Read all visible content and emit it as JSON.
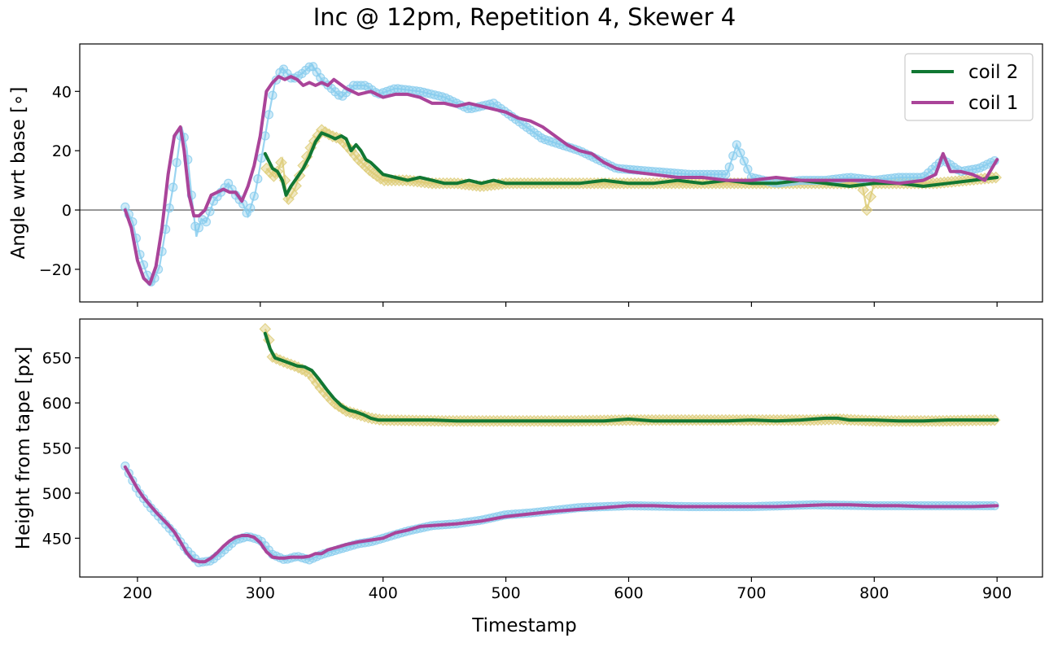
{
  "chart_data": {
    "title": "Inc @ 12pm, Repetition 4, Skewer 4",
    "xlabel": "Timestamp",
    "xlim": [
      153,
      937
    ],
    "xticks": [
      200,
      300,
      400,
      500,
      600,
      700,
      800,
      900
    ],
    "colors": {
      "coil2_raw": "#DDCC77",
      "coil2_line": "#117733",
      "coil1_raw": "#88CCEE",
      "coil1_line": "#AA4499",
      "zero_line": "#808080"
    },
    "panels": [
      {
        "type": "line",
        "ylabel": "Angle wrt base [∘]",
        "ylim": [
          -31,
          56
        ],
        "yticks": [
          -20,
          0,
          20,
          40
        ],
        "zero_line": true,
        "legend": {
          "placement": "top-right",
          "entries": [
            "coil 2",
            "coil 1"
          ]
        },
        "series": [
          {
            "name": "coil 2",
            "raw": {
              "x": [
                305,
                312,
                318,
                322,
                328,
                335,
                342,
                350,
                358,
                365,
                372,
                380,
                390,
                400,
                420,
                440,
                460,
                480,
                500,
                530,
                560,
                600,
                650,
                700,
                750,
                790,
                794,
                800,
                850,
                900
              ],
              "y": [
                14,
                11,
                17,
                3,
                7,
                15,
                22,
                27,
                25,
                24,
                21,
                17,
                13,
                10,
                10,
                9,
                9,
                8,
                9,
                9,
                9,
                9,
                9,
                9,
                9,
                9,
                0,
                9,
                9,
                11
              ]
            },
            "smooth": {
              "x": [
                304,
                310,
                314,
                318,
                321,
                325,
                330,
                335,
                340,
                345,
                350,
                356,
                361,
                366,
                370,
                374,
                378,
                382,
                386,
                390,
                395,
                400,
                410,
                420,
                430,
                440,
                450,
                460,
                470,
                480,
                490,
                500,
                520,
                540,
                560,
                580,
                600,
                620,
                640,
                660,
                680,
                700,
                720,
                740,
                760,
                780,
                800,
                820,
                840,
                860,
                880,
                900
              ],
              "y": [
                19,
                14,
                13,
                10,
                5,
                8,
                11,
                14,
                18,
                23,
                26,
                25,
                24,
                25,
                24,
                20,
                22,
                20,
                17,
                16,
                14,
                12,
                11,
                10,
                11,
                10,
                9,
                9,
                10,
                9,
                10,
                9,
                9,
                9,
                9,
                10,
                9,
                9,
                10,
                9,
                10,
                9,
                9,
                10,
                9,
                8,
                9,
                9,
                8,
                9,
                10,
                11
              ]
            }
          },
          {
            "name": "coil 1",
            "raw": {
              "x": [
                190,
                196,
                202,
                208,
                212,
                218,
                224,
                230,
                236,
                240,
                244,
                248,
                252,
                256,
                262,
                268,
                274,
                280,
                286,
                290,
                296,
                300,
                306,
                312,
                318,
                326,
                334,
                342,
                350,
                358,
                366,
                376,
                386,
                396,
                410,
                430,
                450,
                470,
                490,
                510,
                530,
                560,
                590,
                620,
                650,
                680,
                688,
                700,
                720,
                740,
                760,
                780,
                800,
                820,
                840,
                856,
                870,
                885,
                900
              ],
              "y": [
                1,
                -4,
                -15,
                -22,
                -25,
                -19,
                -4,
                10,
                28,
                21,
                5,
                -9,
                -3,
                -4,
                3,
                6,
                9,
                5,
                2,
                -2,
                6,
                15,
                30,
                43,
                48,
                44,
                46,
                49,
                44,
                41,
                38,
                42,
                42,
                39,
                41,
                40,
                38,
                34,
                36,
                30,
                24,
                20,
                14,
                13,
                12,
                12,
                22,
                11,
                9,
                10,
                10,
                11,
                10,
                11,
                11,
                17,
                13,
                14,
                17
              ]
            },
            "smooth": {
              "x": [
                190,
                195,
                200,
                205,
                210,
                215,
                220,
                225,
                230,
                235,
                238,
                242,
                246,
                250,
                255,
                260,
                265,
                270,
                275,
                280,
                285,
                290,
                295,
                300,
                305,
                310,
                315,
                320,
                325,
                330,
                335,
                340,
                345,
                350,
                355,
                360,
                370,
                380,
                390,
                400,
                410,
                420,
                430,
                440,
                450,
                460,
                470,
                480,
                490,
                500,
                510,
                520,
                530,
                540,
                550,
                560,
                570,
                580,
                590,
                600,
                620,
                640,
                660,
                680,
                690,
                700,
                720,
                740,
                760,
                780,
                800,
                820,
                840,
                850,
                856,
                862,
                870,
                880,
                890,
                900
              ],
              "y": [
                0,
                -6,
                -17,
                -23,
                -25,
                -19,
                -6,
                12,
                25,
                28,
                20,
                5,
                -2,
                -2,
                0,
                5,
                6,
                7,
                6,
                6,
                3,
                8,
                15,
                25,
                40,
                43,
                45,
                44,
                45,
                44,
                42,
                43,
                42,
                43,
                42,
                44,
                41,
                39,
                40,
                38,
                39,
                39,
                38,
                36,
                36,
                35,
                36,
                35,
                34,
                33,
                31,
                30,
                28,
                25,
                22,
                20,
                19,
                16,
                14,
                13,
                12,
                11,
                11,
                10,
                10,
                10,
                11,
                10,
                10,
                10,
                10,
                9,
                10,
                12,
                19,
                13,
                13,
                12,
                10,
                17
              ]
            }
          }
        ]
      },
      {
        "type": "line",
        "ylabel": "Height from tape [px]",
        "ylim": [
          407,
          693
        ],
        "yticks": [
          450,
          500,
          550,
          600,
          650
        ],
        "series": [
          {
            "name": "coil 2",
            "raw": {
              "x": [
                304,
                306,
                310,
                320,
                330,
                340,
                350,
                360,
                370,
                380,
                390,
                400,
                450,
                500,
                550,
                600,
                650,
                700,
                750,
                770,
                800,
                850,
                900
              ],
              "y": [
                682,
                676,
                651,
                645,
                640,
                633,
                615,
                600,
                591,
                587,
                583,
                581,
                580,
                580,
                580,
                581,
                581,
                581,
                581,
                582,
                580,
                580,
                581
              ]
            },
            "smooth": {
              "x": [
                304,
                308,
                312,
                318,
                324,
                330,
                336,
                342,
                348,
                354,
                360,
                366,
                372,
                378,
                384,
                390,
                396,
                400,
                420,
                440,
                460,
                480,
                500,
                520,
                540,
                560,
                580,
                600,
                620,
                640,
                660,
                680,
                700,
                720,
                740,
                760,
                770,
                780,
                800,
                820,
                840,
                860,
                880,
                900
              ],
              "y": [
                677,
                660,
                650,
                647,
                644,
                641,
                640,
                636,
                626,
                615,
                605,
                597,
                592,
                590,
                587,
                583,
                581,
                581,
                581,
                581,
                580,
                580,
                580,
                580,
                580,
                580,
                580,
                582,
                580,
                580,
                580,
                580,
                581,
                580,
                581,
                583,
                583,
                581,
                581,
                580,
                580,
                581,
                581,
                581
              ]
            }
          },
          {
            "name": "coil 1",
            "raw": {
              "x": [
                190,
                200,
                210,
                220,
                230,
                240,
                250,
                260,
                270,
                280,
                290,
                300,
                310,
                320,
                330,
                340,
                350,
                360,
                370,
                380,
                390,
                400,
                420,
                440,
                460,
                480,
                500,
                520,
                540,
                560,
                580,
                600,
                650,
                700,
                750,
                800,
                850,
                900
              ],
              "y": [
                530,
                503,
                485,
                470,
                455,
                437,
                423,
                425,
                436,
                448,
                452,
                448,
                432,
                426,
                430,
                426,
                432,
                436,
                440,
                444,
                446,
                450,
                458,
                464,
                466,
                470,
                476,
                478,
                481,
                484,
                485,
                486,
                485,
                485,
                487,
                486,
                486,
                486
              ]
            },
            "smooth": {
              "x": [
                190,
                195,
                200,
                205,
                210,
                215,
                220,
                225,
                230,
                235,
                240,
                245,
                250,
                255,
                260,
                265,
                270,
                275,
                280,
                285,
                290,
                295,
                300,
                305,
                310,
                315,
                320,
                325,
                330,
                335,
                340,
                345,
                350,
                355,
                360,
                365,
                370,
                380,
                390,
                400,
                410,
                420,
                430,
                440,
                460,
                480,
                500,
                520,
                540,
                560,
                580,
                600,
                620,
                640,
                660,
                680,
                700,
                720,
                740,
                760,
                780,
                800,
                820,
                840,
                860,
                880,
                900
              ],
              "y": [
                529,
                517,
                505,
                495,
                487,
                479,
                472,
                465,
                457,
                446,
                434,
                426,
                424,
                424,
                428,
                434,
                441,
                447,
                451,
                453,
                453,
                451,
                445,
                435,
                429,
                428,
                428,
                429,
                429,
                429,
                430,
                433,
                433,
                437,
                439,
                441,
                443,
                446,
                448,
                450,
                456,
                459,
                463,
                464,
                466,
                469,
                474,
                477,
                480,
                482,
                484,
                486,
                486,
                485,
                485,
                485,
                485,
                485,
                486,
                487,
                487,
                486,
                486,
                485,
                485,
                485,
                486
              ]
            }
          }
        ]
      }
    ]
  }
}
